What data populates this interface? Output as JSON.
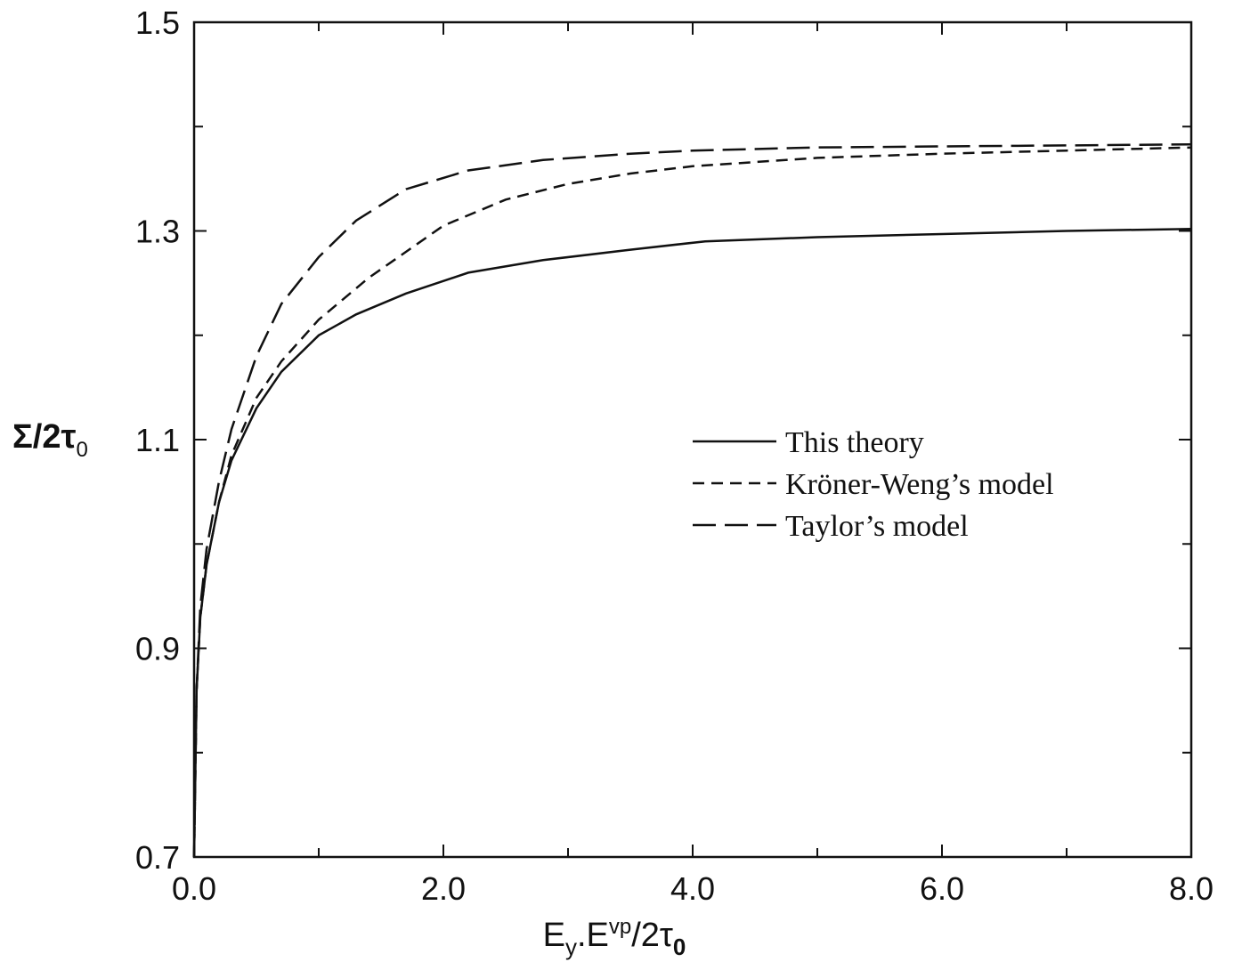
{
  "chart_data": {
    "type": "line",
    "title": "",
    "xlabel": {
      "base": "E",
      "sub1": "y",
      "mid": ".E",
      "sup": "vp",
      "tail": "/2τ",
      "sub2": "0"
    },
    "ylabel": {
      "main": "Σ/2τ",
      "sub": "0"
    },
    "xlim": [
      0,
      8
    ],
    "ylim": [
      0.7,
      1.5
    ],
    "xticks": [
      0,
      2,
      4,
      6,
      8
    ],
    "xtick_labels": [
      "0.0",
      "2.0",
      "4.0",
      "6.0",
      "8.0"
    ],
    "xminor": [
      1,
      3,
      5,
      7
    ],
    "yticks": [
      0.7,
      0.9,
      1.1,
      1.3,
      1.5
    ],
    "ytick_labels": [
      "0.7",
      "0.9",
      "1.1",
      "1.3",
      "1.5"
    ],
    "yminor": [
      0.8,
      1.0,
      1.2,
      1.4
    ],
    "grid": false,
    "legend_position": "center-right",
    "series": [
      {
        "name": "This theory",
        "dash": "solid",
        "x": [
          0,
          0.02,
          0.05,
          0.1,
          0.2,
          0.3,
          0.5,
          0.7,
          1.0,
          1.3,
          1.7,
          2.2,
          2.8,
          3.5,
          4.1,
          5.0,
          6.0,
          7.0,
          8.0
        ],
        "y": [
          0.7,
          0.86,
          0.93,
          0.98,
          1.04,
          1.08,
          1.13,
          1.165,
          1.2,
          1.22,
          1.24,
          1.26,
          1.272,
          1.282,
          1.29,
          1.294,
          1.297,
          1.3,
          1.302
        ]
      },
      {
        "name": "Kröner-Weng’s model",
        "dash": "short-dash",
        "x": [
          0,
          0.02,
          0.05,
          0.1,
          0.2,
          0.3,
          0.5,
          0.7,
          1.0,
          1.4,
          2.0,
          2.5,
          3.0,
          3.5,
          4.0,
          5.0,
          6.0,
          7.0,
          8.0
        ],
        "y": [
          0.7,
          0.86,
          0.93,
          0.98,
          1.04,
          1.085,
          1.14,
          1.175,
          1.215,
          1.255,
          1.305,
          1.33,
          1.345,
          1.355,
          1.362,
          1.37,
          1.374,
          1.377,
          1.38
        ]
      },
      {
        "name": "Taylor’s model",
        "dash": "long-dash",
        "x": [
          0,
          0.02,
          0.05,
          0.1,
          0.2,
          0.3,
          0.5,
          0.7,
          1.0,
          1.3,
          1.7,
          2.2,
          2.8,
          3.5,
          4.0,
          5.0,
          6.0,
          7.0,
          8.0
        ],
        "y": [
          0.7,
          0.86,
          0.94,
          0.995,
          1.06,
          1.11,
          1.18,
          1.23,
          1.275,
          1.31,
          1.34,
          1.358,
          1.368,
          1.374,
          1.377,
          1.38,
          1.381,
          1.382,
          1.383
        ]
      }
    ]
  }
}
